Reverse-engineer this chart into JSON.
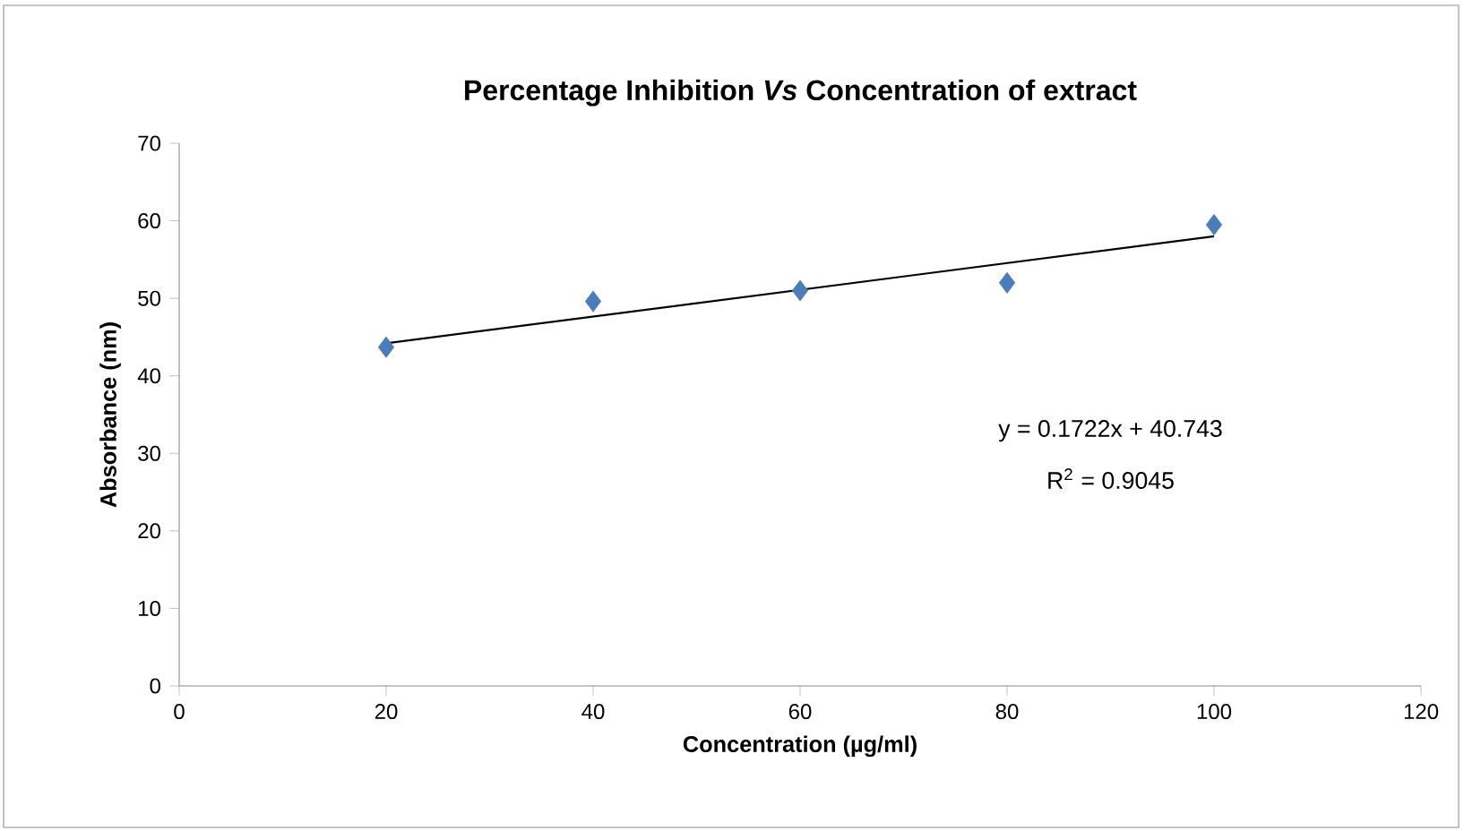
{
  "chart_data": {
    "type": "scatter",
    "title": "Percentage Inhibition *Vs* Concentration of extract",
    "xlabel": "Concentration (µg/ml)",
    "ylabel": "Absorbance (nm)",
    "xlim": [
      0,
      120
    ],
    "xticks": [
      0,
      20,
      40,
      60,
      80,
      100,
      120
    ],
    "ylim": [
      0,
      70
    ],
    "yticks": [
      0,
      10,
      20,
      30,
      40,
      50,
      60,
      70
    ],
    "grid": false,
    "legend": false,
    "marker": "diamond",
    "series": [
      {
        "color": "#4a7ebb",
        "x": [
          20,
          40,
          60,
          80,
          100
        ],
        "values": [
          43.7,
          49.6,
          51.0,
          52.0,
          59.5
        ]
      },
      {
        "type": "line",
        "color": "#000000",
        "marker": "none",
        "x": [
          20,
          100
        ],
        "values": [
          44.2,
          58.0
        ]
      }
    ],
    "annotations": [
      "y = 0.1722x + 40.743",
      "R$^{2}$ = 0.9045"
    ]
  }
}
